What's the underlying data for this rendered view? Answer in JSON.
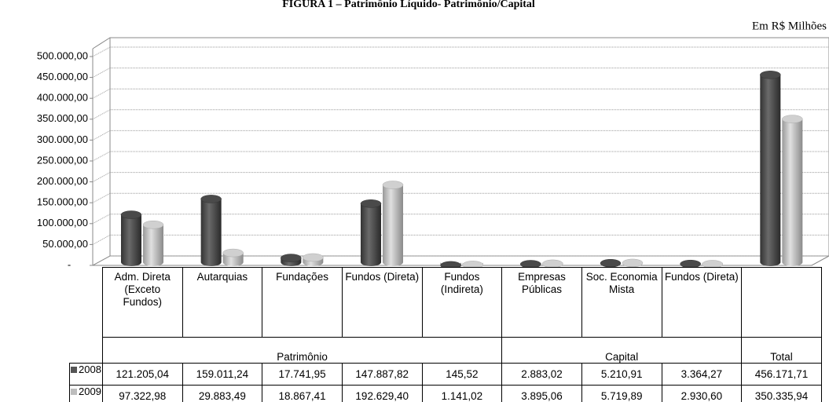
{
  "chart_data": {
    "type": "bar",
    "title": "FIGURA 1 – Patrimônio Líquido- Patrimônio/Capital",
    "subtitle": "Em R$ Milhões",
    "categories": [
      "Adm. Direta (Exceto Fundos)",
      "Autarquias",
      "Fundações",
      "Fundos (Direta)",
      "Fundos (Indireta)",
      "Empresas Públicas",
      "Soc. Economia Mista",
      "Fundos (Direta)",
      ""
    ],
    "category_groups": [
      "Patrimônio",
      "Patrimônio",
      "Patrimônio",
      "Patrimônio",
      "Patrimônio",
      "Capital",
      "Capital",
      "Capital",
      "Total"
    ],
    "series": [
      {
        "name": "2008",
        "color": "#555555",
        "values": [
          121205.04,
          159011.24,
          17741.95,
          147887.82,
          145.52,
          2883.02,
          5210.91,
          3364.27,
          456171.71
        ],
        "value_labels": [
          "121.205,04",
          "159.011,24",
          "17.741,95",
          "147.887,82",
          "145,52",
          "2.883,02",
          "5.210,91",
          "3.364,27",
          "456.171,71"
        ]
      },
      {
        "name": "2009",
        "color": "#bdbdbd",
        "values": [
          97322.98,
          29883.49,
          18867.41,
          192629.4,
          1141.02,
          3895.06,
          5719.89,
          2930.6,
          350335.94
        ],
        "value_labels": [
          "97.322,98",
          "29.883,49",
          "18.867,41",
          "192.629,40",
          "1.141,02",
          "3.895,06",
          "5.719,89",
          "2.930,60",
          "350.335,94"
        ]
      }
    ],
    "ylim": [
      0,
      500000
    ],
    "yticks": [
      {
        "value": 0,
        "label": "-"
      },
      {
        "value": 50000,
        "label": "50.000,00"
      },
      {
        "value": 100000,
        "label": "100.000,00"
      },
      {
        "value": 150000,
        "label": "150.000,00"
      },
      {
        "value": 200000,
        "label": "200.000,00"
      },
      {
        "value": 250000,
        "label": "250.000,00"
      },
      {
        "value": 300000,
        "label": "300.000,00"
      },
      {
        "value": 350000,
        "label": "350.000,00"
      },
      {
        "value": 400000,
        "label": "400.000,00"
      },
      {
        "value": 450000,
        "label": "450.000,00"
      },
      {
        "value": 500000,
        "label": "500.000,00"
      }
    ],
    "grid": true
  }
}
